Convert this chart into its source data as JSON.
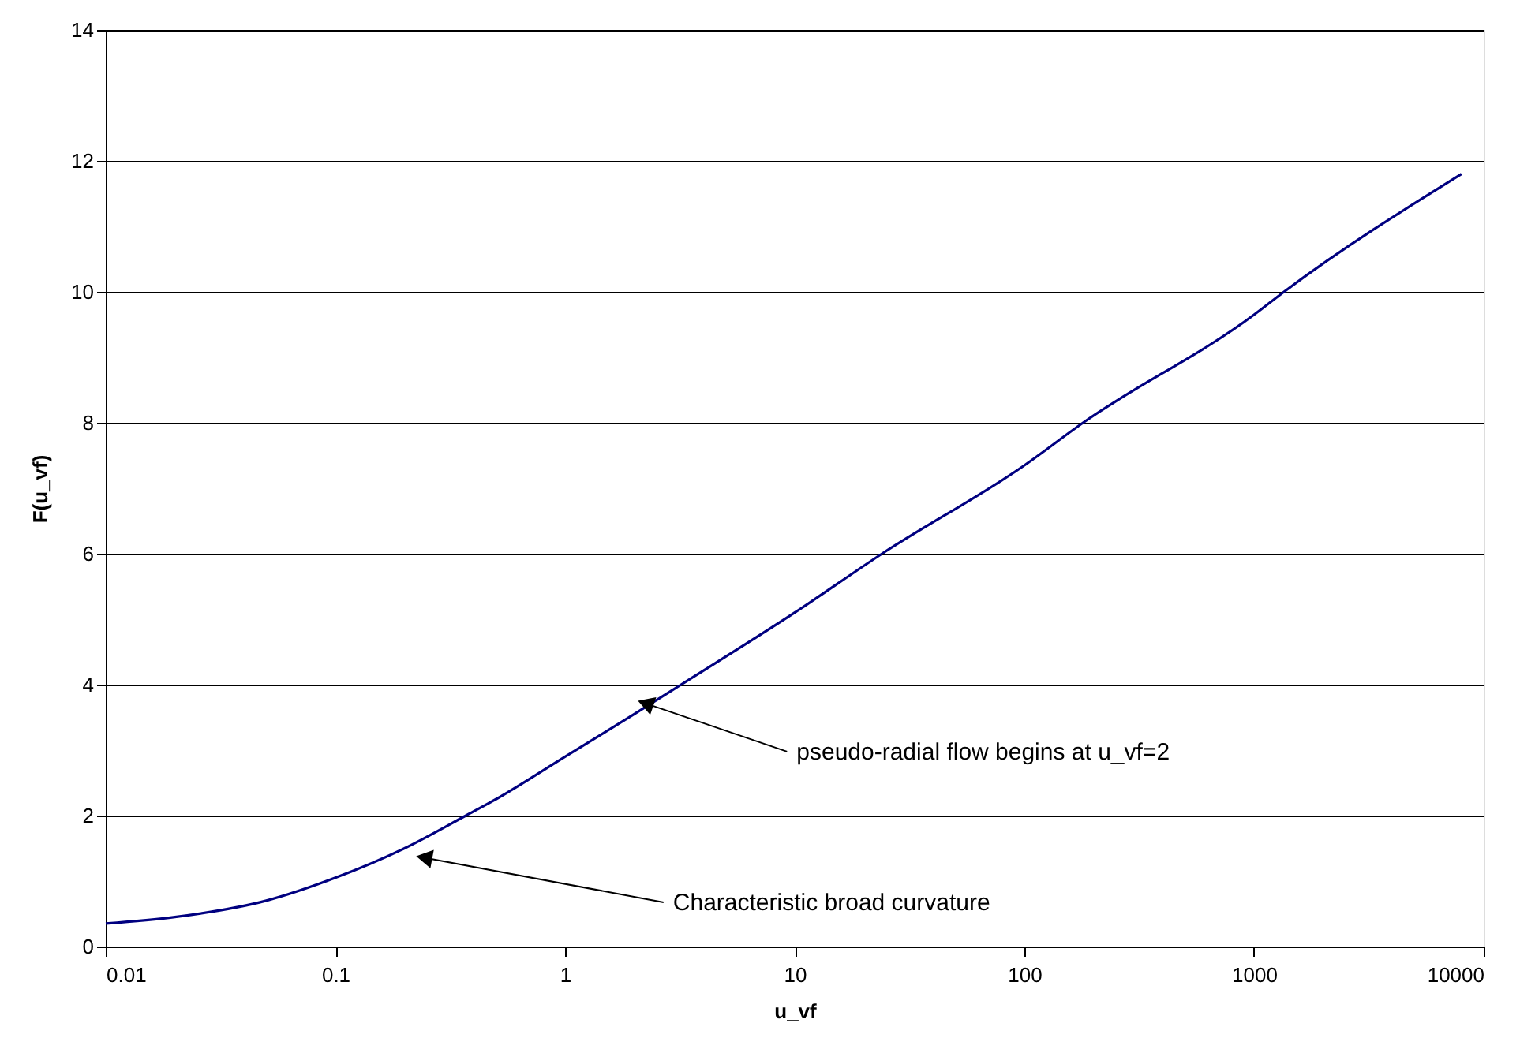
{
  "chart_data": {
    "type": "line",
    "xlabel": "u_vf",
    "ylabel": "F(u_vf)",
    "log": "x",
    "xlim": [
      0.01,
      10000
    ],
    "xticks": [
      0.01,
      0.1,
      1,
      10,
      100,
      1000,
      10000
    ],
    "ylim": [
      0,
      14
    ],
    "yticks": [
      0,
      2,
      4,
      6,
      8,
      10,
      12,
      14
    ],
    "grid": "y",
    "marker": "none",
    "line_style": "solid",
    "series": [
      {
        "color": "#000080",
        "x": [
          0.01,
          0.02,
          0.05,
          0.1,
          0.2,
          0.37,
          0.5,
          1,
          2,
          3.2,
          10,
          24,
          100,
          180,
          1000,
          1350,
          8000
        ],
        "values": [
          0.35,
          0.45,
          0.7,
          1.05,
          1.5,
          2,
          2.25,
          2.9,
          3.55,
          4,
          5.1,
          6,
          7.35,
          8,
          9.65,
          10,
          11.8
        ]
      }
    ],
    "annotations": [
      {
        "text": "pseudo-radial flow begins at u_vf=2",
        "x": 2.3,
        "y": 3.7
      },
      {
        "text": "Characteristic broad curvature",
        "x": 0.25,
        "y": 1.35
      }
    ]
  }
}
